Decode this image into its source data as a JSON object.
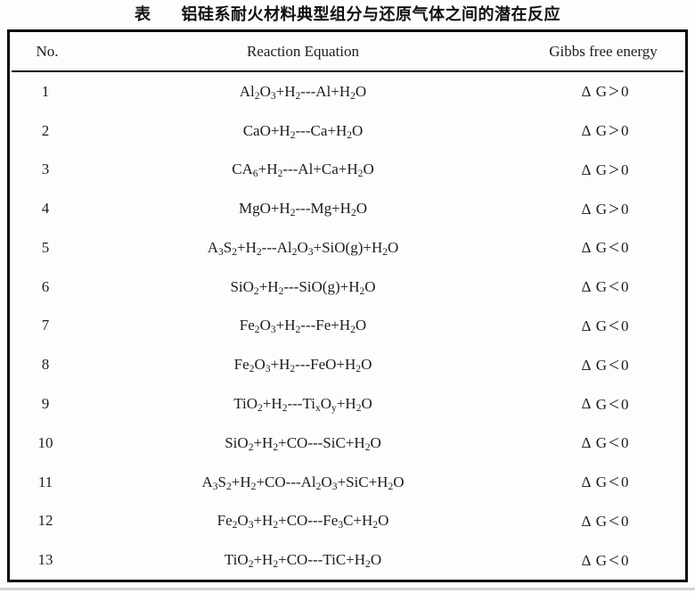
{
  "title": {
    "prefix": "表",
    "text": "铝硅系耐火材料典型组分与还原气体之间的潜在反应"
  },
  "table": {
    "headers": {
      "no": "No.",
      "equation": "Reaction Equation",
      "gibbs": "Gibbs free energy"
    },
    "rows": [
      {
        "no": "1",
        "equation": "Al_2O_3+H_2---Al+H_2O",
        "gibbs": "Δ G>0"
      },
      {
        "no": "2",
        "equation": "CaO+H_2---Ca+H_2O",
        "gibbs": "Δ G>0"
      },
      {
        "no": "3",
        "equation": "CA_6+H_2---Al+Ca+H_2O",
        "gibbs": "Δ G>0"
      },
      {
        "no": "4",
        "equation": "MgO+H_2---Mg+H_2O",
        "gibbs": "Δ G>0"
      },
      {
        "no": "5",
        "equation": "A_3S_2+H_2---Al_2O_3+SiO(g)+H_2O",
        "gibbs": "Δ G<0"
      },
      {
        "no": "6",
        "equation": "SiO_2+H_2---SiO(g)+H_2O",
        "gibbs": "Δ G<0"
      },
      {
        "no": "7",
        "equation": "Fe_2O_3+H_2---Fe+H_2O",
        "gibbs": "Δ G<0"
      },
      {
        "no": "8",
        "equation": "Fe_2O_3+H_2---FeO+H_2O",
        "gibbs": "Δ G<0"
      },
      {
        "no": "9",
        "equation": "TiO_2+H_2---Ti_xO_y+H_2O",
        "gibbs": "Δ G<0"
      },
      {
        "no": "10",
        "equation": "SiO_2+H_2+CO---SiC+H_2O",
        "gibbs": "Δ G<0"
      },
      {
        "no": "11",
        "equation": "A_3S_2+H_2+CO---Al_2O_3+SiC+H_2O",
        "gibbs": "Δ G<0"
      },
      {
        "no": "12",
        "equation": "Fe_2O_3+H_2+CO---Fe_3C+H_2O",
        "gibbs": "Δ G<0"
      },
      {
        "no": "13",
        "equation": "TiO_2+H_2+CO---TiC+H_2O",
        "gibbs": "Δ G<0"
      }
    ]
  },
  "colors": {
    "background": "#fdfdfd",
    "text": "#1c1c1c",
    "border": "#0b0b0b",
    "bottom_strip": "#d4d4d4"
  }
}
